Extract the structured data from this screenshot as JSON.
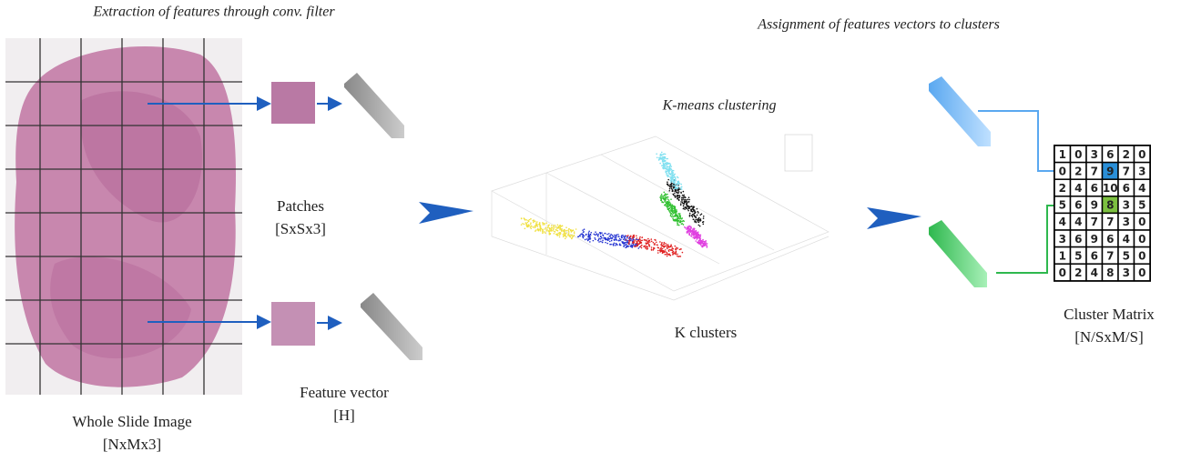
{
  "header": {
    "left": "Extraction of features through conv. filter",
    "right": "Assignment of features vectors to clusters"
  },
  "wsi": {
    "title": "Whole Slide Image",
    "dims": "[NxMx3]"
  },
  "patches": {
    "title": "Patches",
    "dims": "[SxSx3]"
  },
  "feature": {
    "title": "Feature vector",
    "dims": "[H]"
  },
  "kmeans": {
    "title": "K-means clustering",
    "caption": "K clusters"
  },
  "matrix": {
    "title": "Cluster Matrix",
    "dims": "[N/SxM/S]",
    "rows": [
      [
        1,
        0,
        3,
        6,
        2,
        0
      ],
      [
        0,
        2,
        7,
        9,
        7,
        3
      ],
      [
        2,
        4,
        6,
        10,
        6,
        4
      ],
      [
        5,
        6,
        9,
        8,
        3,
        5
      ],
      [
        4,
        4,
        7,
        7,
        3,
        0
      ],
      [
        3,
        6,
        9,
        6,
        4,
        0
      ],
      [
        1,
        5,
        6,
        7,
        5,
        0
      ],
      [
        0,
        2,
        4,
        8,
        3,
        0
      ]
    ]
  }
}
